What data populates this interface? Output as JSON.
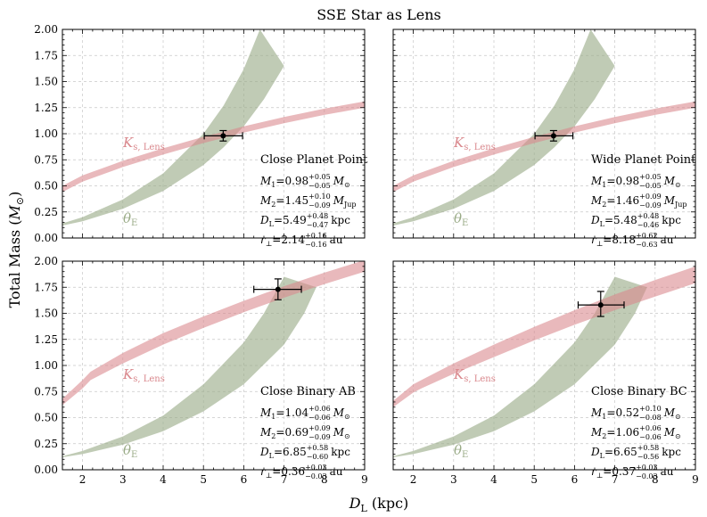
{
  "figure": {
    "title": "SSE Star as Lens",
    "xlabel_main": "D",
    "xlabel_sub": "L",
    "xlabel_unit": " (kpc)",
    "ylabel_main": "Total Mass (",
    "ylabel_sym": "M",
    "ylabel_sun": "⊙",
    "ylabel_close": ")"
  },
  "chart_data": [
    {
      "type": "area",
      "panel": "top-left",
      "xlim": [
        1.5,
        9
      ],
      "ylim": [
        0,
        2
      ],
      "xticks": [
        2,
        3,
        4,
        5,
        6,
        7,
        8,
        9
      ],
      "yticks": [
        0.0,
        0.25,
        0.5,
        0.75,
        1.0,
        1.25,
        1.5,
        1.75,
        2.0
      ],
      "grid": true,
      "x_tick_labels_shown": false,
      "y_tick_labels_shown": true,
      "ks_band": {
        "label_main": "K",
        "label_sub": "s, Lens",
        "color": "#d9878c",
        "x": [
          1.5,
          2.0,
          3.0,
          4.0,
          5.0,
          6.0,
          7.0,
          8.0,
          9.0
        ],
        "lower": [
          0.44,
          0.54,
          0.68,
          0.8,
          0.91,
          1.01,
          1.1,
          1.18,
          1.25
        ],
        "upper": [
          0.5,
          0.6,
          0.74,
          0.86,
          0.97,
          1.07,
          1.16,
          1.24,
          1.31
        ]
      },
      "theta_band": {
        "label_main": "θ",
        "label_sub": "E",
        "color": "#9aab87",
        "x_lower": [
          1.5,
          2.0,
          3.0,
          4.0,
          5.0,
          5.5,
          6.0,
          6.5,
          7.0
        ],
        "lower": [
          0.12,
          0.16,
          0.28,
          0.45,
          0.7,
          0.87,
          1.07,
          1.33,
          1.65
        ],
        "x_upper": [
          1.5,
          2.0,
          3.0,
          4.0,
          5.0,
          5.5,
          6.0,
          6.4
        ],
        "upper": [
          0.14,
          0.2,
          0.37,
          0.62,
          1.0,
          1.27,
          1.62,
          2.0
        ]
      },
      "point": {
        "x": 5.49,
        "y": 0.98,
        "xerr": [
          0.47,
          0.48
        ],
        "yerr": [
          0.05,
          0.05
        ]
      },
      "annotation_title": "Close Planet Point",
      "annotation_lines": [
        {
          "lhs_main": "M",
          "lhs_sub": "1",
          "eq": "=",
          "value": "0.98",
          "up": "+0.05",
          "down": "−0.05",
          "unit_main": "M",
          "unit_sub": "⊙"
        },
        {
          "lhs_main": "M",
          "lhs_sub": "2",
          "eq": "=",
          "value": "1.45",
          "up": "+0.10",
          "down": "−0.09",
          "unit_main": "M",
          "unit_sub": "Jup"
        },
        {
          "lhs_main": "D",
          "lhs_sub": "L",
          "eq": "=",
          "value": "5.49",
          "up": "+0.48",
          "down": "−0.47",
          "unit_main": "kpc",
          "unit_sub": ""
        },
        {
          "lhs_main": "r",
          "lhs_sub": "⊥",
          "eq": "=",
          "value": "2.14",
          "up": "+0.16",
          "down": "−0.16",
          "unit_main": "au",
          "unit_sub": ""
        }
      ]
    },
    {
      "type": "area",
      "panel": "top-right",
      "xlim": [
        1.5,
        9
      ],
      "ylim": [
        0,
        2
      ],
      "xticks": [
        2,
        3,
        4,
        5,
        6,
        7,
        8,
        9
      ],
      "yticks": [
        0.0,
        0.25,
        0.5,
        0.75,
        1.0,
        1.25,
        1.5,
        1.75,
        2.0
      ],
      "grid": true,
      "x_tick_labels_shown": false,
      "y_tick_labels_shown": false,
      "ks_band": {
        "label_main": "K",
        "label_sub": "s, Lens",
        "color": "#d9878c",
        "x": [
          1.5,
          2.0,
          3.0,
          4.0,
          5.0,
          6.0,
          7.0,
          8.0,
          9.0
        ],
        "lower": [
          0.44,
          0.54,
          0.68,
          0.8,
          0.91,
          1.01,
          1.1,
          1.18,
          1.25
        ],
        "upper": [
          0.5,
          0.6,
          0.74,
          0.86,
          0.97,
          1.07,
          1.16,
          1.24,
          1.31
        ]
      },
      "theta_band": {
        "label_main": "θ",
        "label_sub": "E",
        "color": "#9aab87",
        "x_lower": [
          1.5,
          2.0,
          3.0,
          4.0,
          5.0,
          5.5,
          6.0,
          6.5,
          7.0
        ],
        "lower": [
          0.12,
          0.16,
          0.28,
          0.45,
          0.7,
          0.87,
          1.07,
          1.33,
          1.65
        ],
        "x_upper": [
          1.5,
          2.0,
          3.0,
          4.0,
          5.0,
          5.5,
          6.0,
          6.4
        ],
        "upper": [
          0.14,
          0.2,
          0.37,
          0.62,
          1.0,
          1.27,
          1.62,
          2.0
        ]
      },
      "point": {
        "x": 5.48,
        "y": 0.98,
        "xerr": [
          0.46,
          0.48
        ],
        "yerr": [
          0.05,
          0.05
        ]
      },
      "annotation_title": "Wide Planet Point",
      "annotation_lines": [
        {
          "lhs_main": "M",
          "lhs_sub": "1",
          "eq": "=",
          "value": "0.98",
          "up": "+0.05",
          "down": "−0.05",
          "unit_main": "M",
          "unit_sub": "⊙"
        },
        {
          "lhs_main": "M",
          "lhs_sub": "2",
          "eq": "=",
          "value": "1.46",
          "up": "+0.09",
          "down": "−0.09",
          "unit_main": "M",
          "unit_sub": "Jup"
        },
        {
          "lhs_main": "D",
          "lhs_sub": "L",
          "eq": "=",
          "value": "5.48",
          "up": "+0.48",
          "down": "−0.46",
          "unit_main": "kpc",
          "unit_sub": ""
        },
        {
          "lhs_main": "r",
          "lhs_sub": "⊥",
          "eq": "=",
          "value": "8.18",
          "up": "+0.62",
          "down": "−0.63",
          "unit_main": "au",
          "unit_sub": ""
        }
      ]
    },
    {
      "type": "area",
      "panel": "bottom-left",
      "xlim": [
        1.5,
        9
      ],
      "ylim": [
        0,
        2
      ],
      "xticks": [
        2,
        3,
        4,
        5,
        6,
        7,
        8,
        9
      ],
      "yticks": [
        0.0,
        0.25,
        0.5,
        0.75,
        1.0,
        1.25,
        1.5,
        1.75,
        2.0
      ],
      "grid": true,
      "x_tick_labels_shown": true,
      "y_tick_labels_shown": true,
      "ks_band": {
        "label_main": "K",
        "label_sub": "s, Lens",
        "color": "#d9878c",
        "x": [
          1.5,
          2.0,
          2.2,
          3.0,
          4.0,
          5.0,
          6.0,
          7.0,
          8.0,
          9.0
        ],
        "lower": [
          0.62,
          0.78,
          0.86,
          1.02,
          1.2,
          1.36,
          1.51,
          1.65,
          1.78,
          1.9
        ],
        "upper": [
          0.68,
          0.86,
          0.94,
          1.12,
          1.31,
          1.47,
          1.62,
          1.76,
          1.89,
          2.01
        ]
      },
      "theta_band": {
        "label_main": "θ",
        "label_sub": "E",
        "color": "#9aab87",
        "x_lower": [
          1.5,
          2.0,
          3.0,
          4.0,
          5.0,
          6.0,
          7.0,
          7.5,
          7.8
        ],
        "lower": [
          0.12,
          0.15,
          0.24,
          0.37,
          0.56,
          0.82,
          1.2,
          1.5,
          1.75
        ],
        "x_upper": [
          1.5,
          2.0,
          3.0,
          4.0,
          5.0,
          6.0,
          6.5,
          7.0
        ],
        "upper": [
          0.13,
          0.18,
          0.32,
          0.52,
          0.82,
          1.22,
          1.5,
          1.85
        ]
      },
      "point": {
        "x": 6.85,
        "y": 1.73,
        "xerr": [
          0.6,
          0.58
        ],
        "yerr": [
          0.1,
          0.1
        ]
      },
      "annotation_title": "Close Binary AB",
      "annotation_lines": [
        {
          "lhs_main": "M",
          "lhs_sub": "1",
          "eq": "=",
          "value": "1.04",
          "up": "+0.06",
          "down": "−0.06",
          "unit_main": "M",
          "unit_sub": "⊙"
        },
        {
          "lhs_main": "M",
          "lhs_sub": "2",
          "eq": "=",
          "value": "0.69",
          "up": "+0.09",
          "down": "−0.09",
          "unit_main": "M",
          "unit_sub": "⊙"
        },
        {
          "lhs_main": "D",
          "lhs_sub": "L",
          "eq": "=",
          "value": "6.85",
          "up": "+0.58",
          "down": "−0.60",
          "unit_main": "kpc",
          "unit_sub": ""
        },
        {
          "lhs_main": "r",
          "lhs_sub": "⊥",
          "eq": "=",
          "value": "0.36",
          "up": "+0.03",
          "down": "−0.03",
          "unit_main": "au",
          "unit_sub": ""
        }
      ]
    },
    {
      "type": "area",
      "panel": "bottom-right",
      "xlim": [
        1.5,
        9
      ],
      "ylim": [
        0,
        2
      ],
      "xticks": [
        2,
        3,
        4,
        5,
        6,
        7,
        8,
        9
      ],
      "yticks": [
        0.0,
        0.25,
        0.5,
        0.75,
        1.0,
        1.25,
        1.5,
        1.75,
        2.0
      ],
      "grid": true,
      "x_tick_labels_shown": true,
      "y_tick_labels_shown": false,
      "ks_band": {
        "label_main": "K",
        "label_sub": "s, Lens",
        "color": "#d9878c",
        "x": [
          1.5,
          2.0,
          2.2,
          3.0,
          4.0,
          5.0,
          6.0,
          7.0,
          8.0,
          9.0
        ],
        "lower": [
          0.6,
          0.74,
          0.78,
          0.92,
          1.08,
          1.24,
          1.39,
          1.53,
          1.66,
          1.79
        ],
        "upper": [
          0.66,
          0.82,
          0.86,
          1.02,
          1.2,
          1.37,
          1.53,
          1.68,
          1.82,
          1.95
        ]
      },
      "theta_band": {
        "label_main": "θ",
        "label_sub": "E",
        "color": "#9aab87",
        "x_lower": [
          1.5,
          2.0,
          3.0,
          4.0,
          5.0,
          6.0,
          7.0,
          7.5,
          7.8
        ],
        "lower": [
          0.12,
          0.15,
          0.24,
          0.37,
          0.56,
          0.82,
          1.2,
          1.5,
          1.75
        ],
        "x_upper": [
          1.5,
          2.0,
          3.0,
          4.0,
          5.0,
          6.0,
          6.5,
          7.0
        ],
        "upper": [
          0.13,
          0.18,
          0.32,
          0.52,
          0.82,
          1.22,
          1.5,
          1.85
        ]
      },
      "point": {
        "x": 6.65,
        "y": 1.58,
        "xerr": [
          0.56,
          0.58
        ],
        "yerr": [
          0.11,
          0.13
        ]
      },
      "annotation_title": "Close Binary BC",
      "annotation_lines": [
        {
          "lhs_main": "M",
          "lhs_sub": "1",
          "eq": "=",
          "value": "0.52",
          "up": "+0.10",
          "down": "−0.08",
          "unit_main": "M",
          "unit_sub": "⊙"
        },
        {
          "lhs_main": "M",
          "lhs_sub": "2",
          "eq": "=",
          "value": "1.06",
          "up": "+0.06",
          "down": "−0.06",
          "unit_main": "M",
          "unit_sub": "⊙"
        },
        {
          "lhs_main": "D",
          "lhs_sub": "L",
          "eq": "=",
          "value": "6.65",
          "up": "+0.58",
          "down": "−0.56",
          "unit_main": "kpc",
          "unit_sub": ""
        },
        {
          "lhs_main": "r",
          "lhs_sub": "⊥",
          "eq": "=",
          "value": "0.37",
          "up": "+0.03",
          "down": "−0.03",
          "unit_main": "au",
          "unit_sub": ""
        }
      ]
    }
  ]
}
